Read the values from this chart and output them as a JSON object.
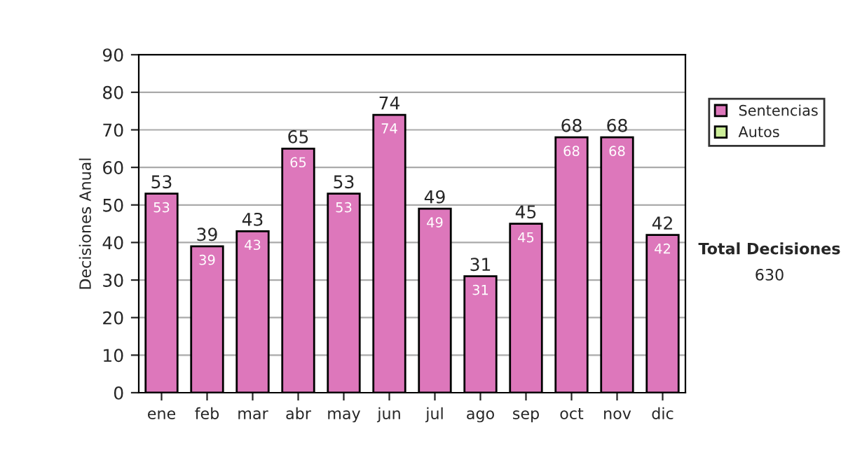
{
  "chart_data": {
    "type": "bar",
    "ylabel": "Decisiones Anual",
    "categories": [
      "ene",
      "feb",
      "mar",
      "abr",
      "may",
      "jun",
      "jul",
      "ago",
      "sep",
      "oct",
      "nov",
      "dic"
    ],
    "stacked": true,
    "series": [
      {
        "name": "Sentencias",
        "color": "#dd77bb",
        "values": [
          53,
          39,
          43,
          65,
          53,
          74,
          49,
          31,
          45,
          68,
          68,
          42
        ],
        "value_labels": [
          "53",
          "39",
          "43",
          "65",
          "53",
          "74",
          "49",
          "31",
          "45",
          "68",
          "68",
          "42"
        ]
      },
      {
        "name": "Autos",
        "color": "#ccee99",
        "values": [
          null,
          null,
          null,
          null,
          null,
          null,
          null,
          null,
          null,
          null,
          null,
          null
        ]
      }
    ],
    "totals": [
      "53",
      "39",
      "43",
      "65",
      "53",
      "74",
      "49",
      "31",
      "45",
      "68",
      "68",
      "42"
    ],
    "ylim": [
      0,
      90
    ],
    "yticks": [
      0,
      10,
      20,
      30,
      40,
      50,
      60,
      70,
      80,
      90
    ],
    "grid": "y",
    "legend": "right",
    "annotations": [
      "Total Decisiones",
      "630"
    ]
  }
}
